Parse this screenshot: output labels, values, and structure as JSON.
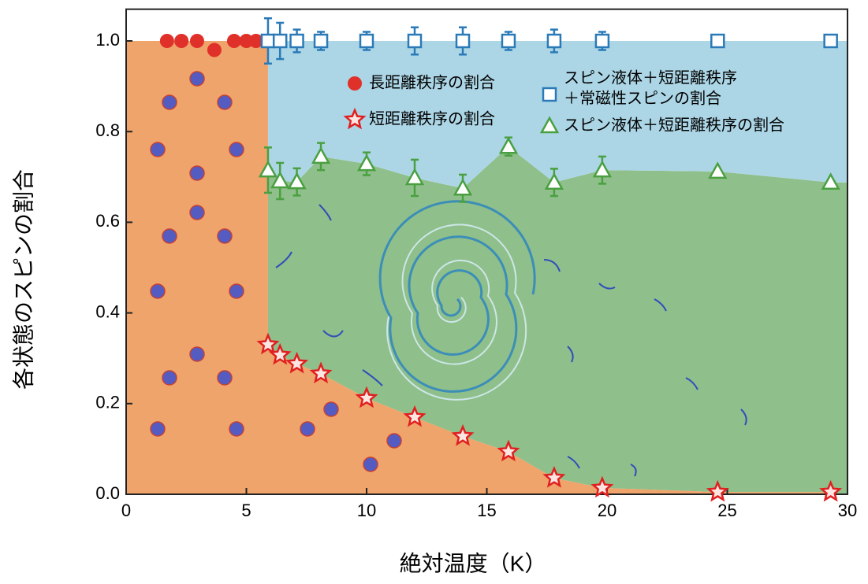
{
  "chart_data": {
    "type": "scatter",
    "xlabel": "絶対温度（K）",
    "ylabel": "各状態のスピンの割合",
    "xlim": [
      0,
      30
    ],
    "xticks": [
      0,
      5,
      10,
      15,
      20,
      25,
      30
    ],
    "ylim": [
      0,
      1.07
    ],
    "yticks": [
      {
        "value": 0,
        "label": "0.0"
      },
      0.2,
      0.4,
      0.6,
      0.8,
      {
        "value": 1,
        "label": "1.0"
      }
    ],
    "series": [
      {
        "name": "長距離秩序の割合",
        "marker": "circle",
        "color": "#e0302a",
        "x": [
          1.7,
          2.3,
          2.95,
          3.67,
          4.49,
          5.0,
          5.4
        ],
        "values": [
          1.0,
          1.0,
          1.0,
          0.98,
          1.0,
          1.0,
          1.0
        ]
      },
      {
        "name": [
          "スピン液体＋短距離秩序",
          "＋常磁性スピンの割合"
        ],
        "marker": "square",
        "color": "#2a7ab8",
        "x": [
          5.9,
          6.4,
          7.1,
          8.1,
          10.0,
          12.0,
          14.0,
          15.9,
          17.8,
          19.8,
          24.6,
          29.3
        ],
        "values": [
          1.0,
          1.0,
          1.0,
          1.0,
          1.0,
          1.0,
          1.0,
          1.0,
          1.0,
          1.0,
          1.0,
          1.0
        ],
        "errors": [
          0.05,
          0.04,
          0.025,
          0.02,
          0.02,
          0.03,
          0.03,
          0.02,
          0.025,
          0.02,
          0,
          0
        ]
      },
      {
        "name": "スピン液体＋短距離秩序の割合",
        "marker": "triangle",
        "color": "#4aa040",
        "x": [
          5.9,
          6.4,
          7.1,
          8.1,
          10.0,
          12.0,
          14.0,
          15.9,
          17.8,
          19.8,
          24.6,
          29.3
        ],
        "values": [
          0.715,
          0.691,
          0.689,
          0.745,
          0.729,
          0.698,
          0.675,
          0.767,
          0.688,
          0.715,
          0.712,
          0.688
        ],
        "errors": [
          0.05,
          0.04,
          0.03,
          0.03,
          0.025,
          0.04,
          0.03,
          0.02,
          0.03,
          0.03,
          0,
          0
        ]
      },
      {
        "name": "短距離秩序の割合",
        "marker": "star",
        "color": "#e02020",
        "x": [
          5.9,
          6.4,
          7.1,
          8.1,
          10.0,
          12.0,
          14.0,
          15.9,
          17.8,
          19.8,
          24.6,
          29.3
        ],
        "values": [
          0.33,
          0.307,
          0.288,
          0.266,
          0.212,
          0.17,
          0.128,
          0.094,
          0.036,
          0.014,
          0.005,
          0.005
        ]
      }
    ],
    "region_colors": {
      "ordered": "#efa46b",
      "liquid": "#8fbf8a",
      "paramagnetic": "#acd6e6"
    }
  }
}
